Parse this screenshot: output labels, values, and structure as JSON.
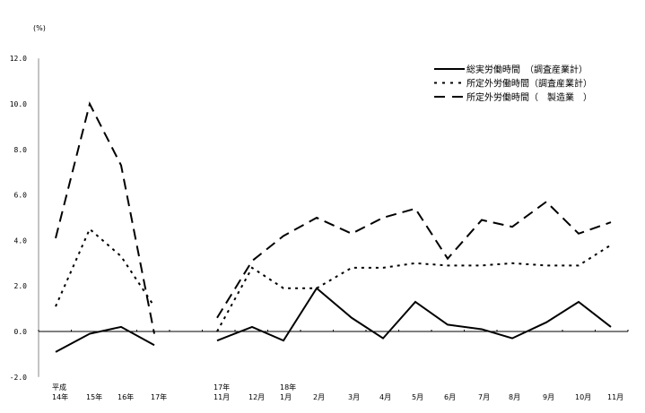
{
  "chart_data": {
    "type": "line",
    "ylabel": "(%)",
    "ylim": [
      -2.0,
      12.0
    ],
    "yticks": [
      "12.0",
      "10.0",
      "8.0",
      "6.0",
      "4.0",
      "2.0",
      "0.0",
      "-2.0"
    ],
    "grid": false,
    "legend_position": "top-right",
    "categories": [
      {
        "top": "平成",
        "bottom": "14年"
      },
      {
        "top": "",
        "bottom": "15年"
      },
      {
        "top": "",
        "bottom": "16年"
      },
      {
        "top": "",
        "bottom": "17年"
      },
      {
        "top": "17年",
        "bottom": "11月"
      },
      {
        "top": "",
        "bottom": "12月"
      },
      {
        "top": "18年",
        "bottom": "1月"
      },
      {
        "top": "",
        "bottom": "2月"
      },
      {
        "top": "",
        "bottom": "3月"
      },
      {
        "top": "",
        "bottom": "4月"
      },
      {
        "top": "",
        "bottom": "5月"
      },
      {
        "top": "",
        "bottom": "6月"
      },
      {
        "top": "",
        "bottom": "7月"
      },
      {
        "top": "",
        "bottom": "8月"
      },
      {
        "top": "",
        "bottom": "9月"
      },
      {
        "top": "",
        "bottom": "10月"
      },
      {
        "top": "",
        "bottom": "11月"
      }
    ],
    "segments": [
      [
        0,
        3
      ],
      [
        4,
        16
      ]
    ],
    "series": [
      {
        "name": "総実労働時間　（調査産業計）",
        "style": "solid",
        "values": [
          -0.9,
          -0.1,
          0.2,
          -0.6,
          -0.4,
          0.2,
          -0.4,
          1.9,
          0.6,
          -0.3,
          1.3,
          0.3,
          0.1,
          -0.3,
          0.4,
          1.3,
          0.2
        ]
      },
      {
        "name": "所定外労働時間（調査産業計）",
        "style": "dotted",
        "values": [
          1.1,
          4.5,
          3.3,
          1.1,
          0.0,
          2.8,
          1.9,
          1.9,
          2.8,
          2.8,
          3.0,
          2.9,
          2.9,
          3.0,
          2.9,
          2.9,
          3.8
        ]
      },
      {
        "name": "所定外労働時間（　製造業　）",
        "style": "dashed",
        "values": [
          4.1,
          10.0,
          7.3,
          -0.1,
          0.6,
          3.1,
          4.2,
          5.0,
          4.3,
          5.0,
          5.4,
          3.2,
          4.9,
          4.6,
          5.7,
          4.3,
          4.8
        ]
      }
    ]
  }
}
